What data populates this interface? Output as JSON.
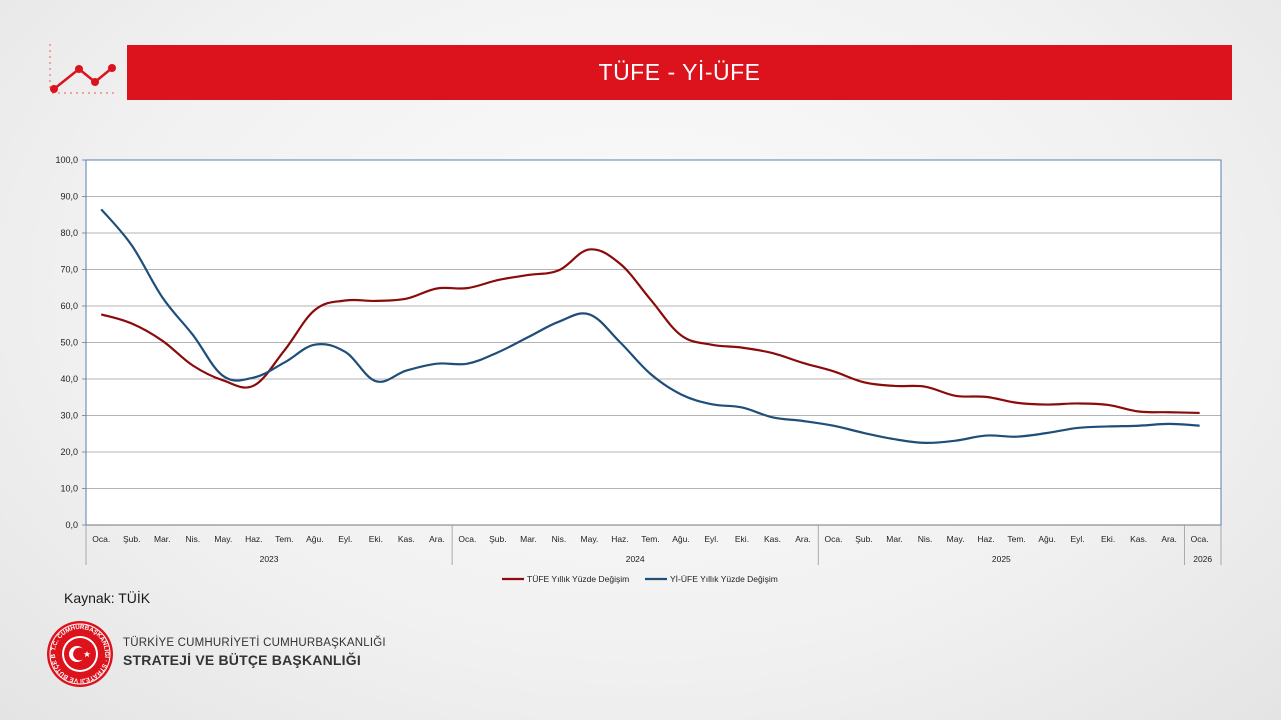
{
  "header": {
    "title": "TÜFE - Yİ-ÜFE",
    "accent_color": "#dc121c",
    "icon": "line-chart-icon"
  },
  "source": "Kaynak: TÜİK",
  "organization": {
    "line1": "TÜRKİYE CUMHURİYETİ CUMHURBAŞKANLIĞI",
    "line2": "STRATEJİ VE BÜTÇE BAŞKANLIĞI",
    "seal_text": "T.C. CUMHURBAŞKANLIĞI STRATEJİ VE BÜTÇE BAŞKANLIĞI",
    "seal_icon": "crescent-star-seal-icon"
  },
  "chart_data": {
    "type": "line",
    "title": "",
    "xlabel": "",
    "ylabel": "",
    "ylim": [
      0,
      100
    ],
    "y_ticks": [
      "0,0",
      "10,0",
      "20,0",
      "30,0",
      "40,0",
      "50,0",
      "60,0",
      "70,0",
      "80,0",
      "90,0",
      "100,0"
    ],
    "grid": true,
    "legend": "bottom-center",
    "categories": [
      "Oca.",
      "Şub.",
      "Mar.",
      "Nis.",
      "May.",
      "Haz.",
      "Tem.",
      "Ağu.",
      "Eyl.",
      "Eki.",
      "Kas.",
      "Ara.",
      "Oca.",
      "Şub.",
      "Mar.",
      "Nis.",
      "May.",
      "Haz.",
      "Tem.",
      "Ağu.",
      "Eyl.",
      "Eki.",
      "Kas.",
      "Ara.",
      "Oca.",
      "Şub.",
      "Mar.",
      "Nis.",
      "May.",
      "Haz.",
      "Tem.",
      "Ağu.",
      "Eyl.",
      "Eki.",
      "Kas.",
      "Ara.",
      "Oca."
    ],
    "year_groups": [
      {
        "label": "2023",
        "count": 12
      },
      {
        "label": "2024",
        "count": 12
      },
      {
        "label": "2025",
        "count": 12
      },
      {
        "label": "2026",
        "count": 1
      }
    ],
    "series": [
      {
        "name": "TÜFE Yıllık Yüzde Değişim",
        "color": "#8b0a0a",
        "values": [
          57.7,
          55.2,
          50.5,
          43.7,
          39.6,
          38.2,
          47.8,
          58.9,
          61.5,
          61.4,
          62.0,
          64.8,
          64.9,
          67.1,
          68.5,
          69.8,
          75.5,
          71.6,
          61.8,
          52.0,
          49.4,
          48.6,
          47.1,
          44.4,
          42.1,
          39.1,
          38.1,
          37.9,
          35.4,
          35.1,
          33.5,
          33.0,
          33.3,
          32.9,
          31.1,
          30.9,
          30.7
        ]
      },
      {
        "name": "Yİ-ÜFE Yıllık Yüzde Değişim",
        "color": "#1f4e79",
        "values": [
          86.5,
          76.6,
          62.4,
          52.1,
          40.8,
          40.4,
          44.5,
          49.4,
          47.4,
          39.4,
          42.3,
          44.2,
          44.2,
          47.3,
          51.5,
          55.7,
          57.7,
          50.1,
          41.4,
          35.8,
          33.1,
          32.2,
          29.5,
          28.5,
          27.2,
          25.2,
          23.5,
          22.5,
          23.1,
          24.5,
          24.2,
          25.2,
          26.6,
          27.0,
          27.2,
          27.7,
          27.2
        ]
      }
    ]
  }
}
